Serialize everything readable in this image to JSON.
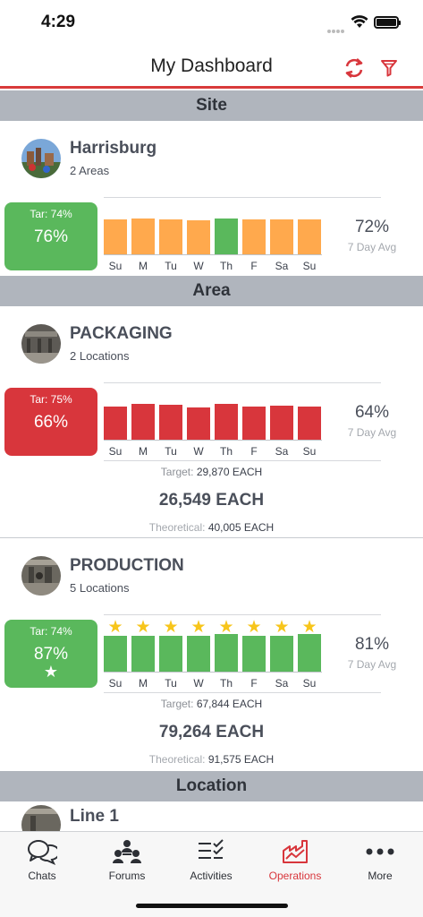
{
  "status": {
    "time": "4:29"
  },
  "header": {
    "title": "My Dashboard"
  },
  "sections": {
    "site": "Site",
    "area": "Area",
    "location": "Location"
  },
  "days": [
    "Su",
    "M",
    "Tu",
    "W",
    "Th",
    "F",
    "Sa",
    "Su"
  ],
  "site": {
    "name": "Harrisburg",
    "sub": "2 Areas",
    "tar": "Tar: 74%",
    "pct": "76%",
    "avg": "72%",
    "avg_label": "7 Day Avg",
    "bar_levels": [
      0.88,
      0.9,
      0.88,
      0.86,
      0.92,
      0.88,
      0.88,
      0.88
    ],
    "bar_colors": [
      "orange",
      "orange",
      "orange",
      "orange",
      "green",
      "orange",
      "orange",
      "orange"
    ]
  },
  "areas": [
    {
      "name": "PACKAGING",
      "sub": "2 Locations",
      "tar": "Tar: 75%",
      "pct": "66%",
      "star": "",
      "avg": "64%",
      "avg_label": "7 Day Avg",
      "target_label": "Target:",
      "target_value": "29,870 EACH",
      "actual": "26,549 EACH",
      "theoretical_label": "Theoretical:",
      "theoretical_value": "40,005 EACH",
      "bar_levels": [
        0.84,
        0.9,
        0.88,
        0.82,
        0.92,
        0.84,
        0.86,
        0.84
      ],
      "bar_colors": [
        "red",
        "red",
        "red",
        "red",
        "red",
        "red",
        "red",
        "red"
      ],
      "stars": [
        false,
        false,
        false,
        false,
        false,
        false,
        false,
        false
      ]
    },
    {
      "name": "PRODUCTION",
      "sub": "5 Locations",
      "tar": "Tar: 74%",
      "pct": "87%",
      "star": "★",
      "avg": "81%",
      "avg_label": "7 Day Avg",
      "target_label": "Target:",
      "target_value": "67,844 EACH",
      "actual": "79,264 EACH",
      "theoretical_label": "Theoretical:",
      "theoretical_value": "91,575 EACH",
      "bar_levels": [
        0.92,
        0.92,
        0.92,
        0.92,
        0.96,
        0.92,
        0.92,
        0.96
      ],
      "bar_colors": [
        "green",
        "green",
        "green",
        "green",
        "green",
        "green",
        "green",
        "green"
      ],
      "stars": [
        true,
        true,
        true,
        true,
        true,
        true,
        true,
        true
      ]
    }
  ],
  "location": {
    "name": "Line 1"
  },
  "tabs": [
    {
      "label": "Chats",
      "icon": "chats-icon"
    },
    {
      "label": "Forums",
      "icon": "forums-icon"
    },
    {
      "label": "Activities",
      "icon": "activities-icon"
    },
    {
      "label": "Operations",
      "icon": "operations-icon",
      "active": true
    },
    {
      "label": "More",
      "icon": "more-icon"
    }
  ],
  "colors": {
    "accent": "#d8363c",
    "good": "#5ab85c",
    "warn": "#ffa94d",
    "star": "#f7c51b"
  }
}
